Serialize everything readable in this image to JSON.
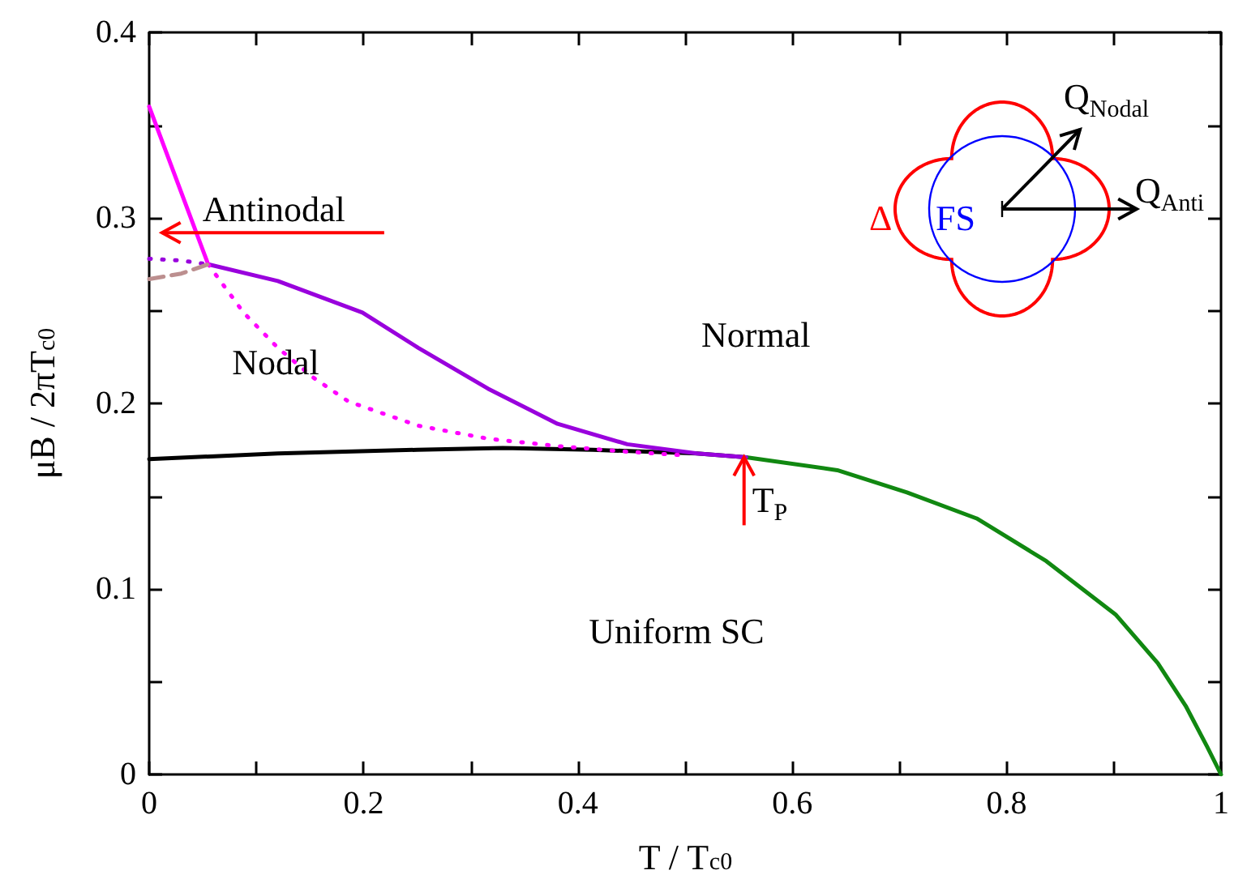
{
  "chart_data": {
    "type": "line",
    "xlabel": "T / T$_{c0}$",
    "ylabel": "μB / 2πT$_{c0}$",
    "xlim": [
      0,
      1
    ],
    "xticks": [
      0,
      {
        "value": 0.1,
        "label": null
      },
      0.2,
      {
        "value": 0.3,
        "label": null
      },
      0.4,
      {
        "value": 0.5,
        "label": null
      },
      0.6,
      {
        "value": 0.7,
        "label": null
      },
      0.8,
      {
        "value": 0.9,
        "label": null
      },
      1
    ],
    "ylim": [
      0,
      0.4
    ],
    "yticks": [
      0,
      {
        "value": 0.05,
        "label": null
      },
      0.1,
      {
        "value": 0.15,
        "label": null
      },
      0.2,
      {
        "value": 0.25,
        "label": null
      },
      0.3,
      {
        "value": 0.35,
        "label": null
      },
      0.4
    ],
    "marker": "none",
    "series": [
      {
        "color": "#000000",
        "line_style": "solid",
        "x": [
          0,
          0.12,
          0.25,
          0.33,
          0.414,
          0.511,
          0.557
        ],
        "values": [
          0.17,
          0.173,
          0.175,
          0.176,
          0.175,
          0.173,
          0.171
        ]
      },
      {
        "color": "#118811",
        "line_style": "solid",
        "x": [
          0.557,
          0.642,
          0.707,
          0.772,
          0.837,
          0.902,
          0.941,
          0.967,
          0.987,
          1
        ],
        "values": [
          0.171,
          0.164,
          0.152,
          0.138,
          0.115,
          0.086,
          0.06,
          0.037,
          0.015,
          0
        ]
      },
      {
        "color": "#9900dd",
        "line_style": "solid",
        "x": [
          0.055,
          0.12,
          0.199,
          0.251,
          0.316,
          0.381,
          0.446,
          0.511,
          0.557
        ],
        "values": [
          0.275,
          0.266,
          0.249,
          0.23,
          0.208,
          0.189,
          0.178,
          0.173,
          0.171
        ]
      },
      {
        "color": "#ff00ff",
        "line_style": "solid",
        "x": [
          0,
          0.055
        ],
        "values": [
          0.36,
          0.275
        ]
      },
      {
        "color": "#ff00ff",
        "line_style": "dotted",
        "x": [
          0.055,
          0.088,
          0.12,
          0.153,
          0.186,
          0.251,
          0.316,
          0.381,
          0.446,
          0.5
        ],
        "values": [
          0.275,
          0.249,
          0.23,
          0.214,
          0.201,
          0.188,
          0.181,
          0.177,
          0.174,
          0.172
        ]
      },
      {
        "color": "#9900dd",
        "line_style": "dotted",
        "x": [
          0,
          0.03,
          0.055
        ],
        "values": [
          0.278,
          0.277,
          0.275
        ]
      },
      {
        "color": "#bc8f8f",
        "line_style": "dashed",
        "x": [
          0,
          0.03,
          0.055
        ],
        "values": [
          0.267,
          0.27,
          0.275
        ]
      }
    ],
    "annotations": [
      "Antinodal",
      "Nodal",
      "Normal",
      "Uniform SC",
      {
        "text": "T$_{P}$",
        "x": 0.555,
        "y": 0.171
      },
      "Δ",
      "FS",
      "Q$_{Nodal}$",
      "Q$_{Anti}$"
    ]
  }
}
